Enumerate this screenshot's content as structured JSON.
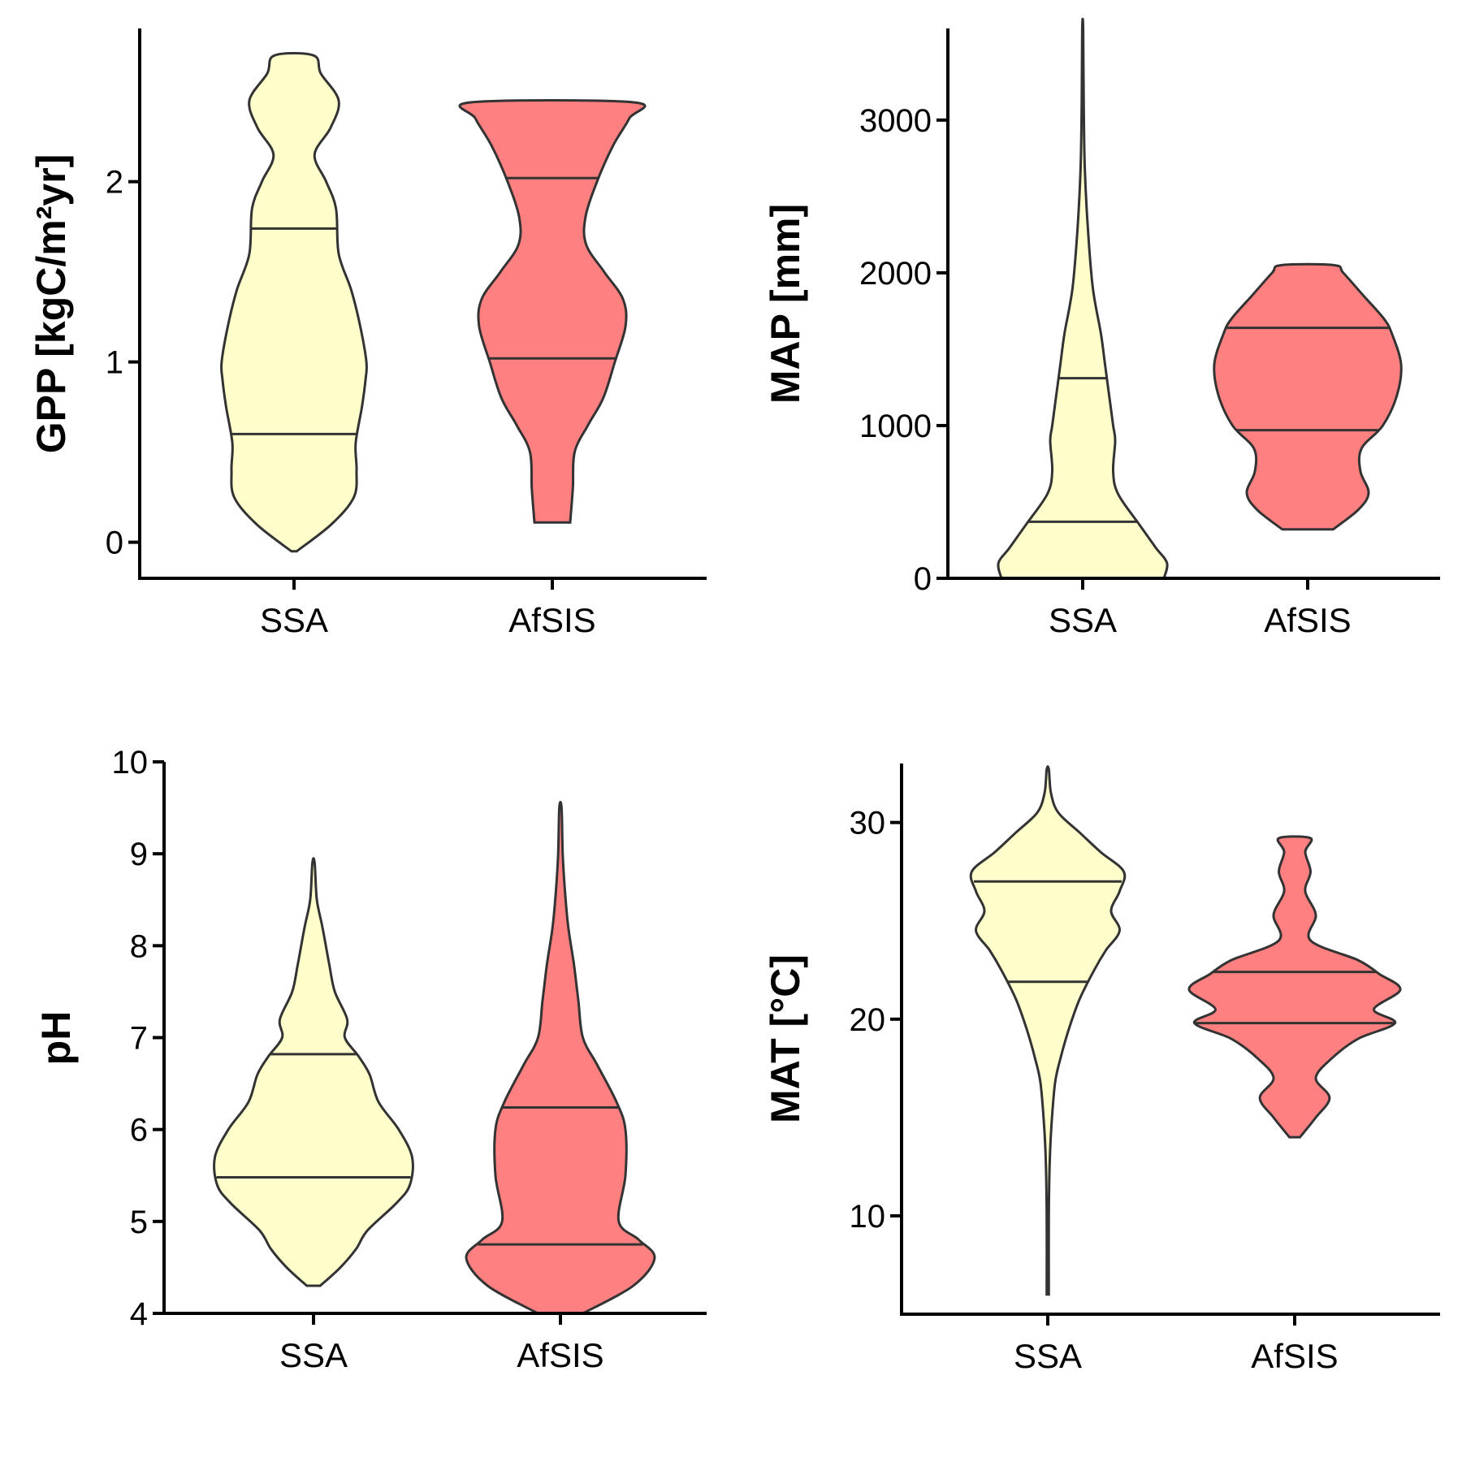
{
  "colors": {
    "SSA": "#FFFFCC",
    "AfSIS": "#FF8080",
    "outline": "#333333"
  },
  "chart_data": [
    {
      "type": "violin",
      "ylabel": "GPP [kgC/m²yr]",
      "categories": [
        "SSA",
        "AfSIS"
      ],
      "ylim": [
        -0.2,
        2.85
      ],
      "yticks": [
        0,
        1,
        2
      ],
      "series": [
        {
          "name": "SSA",
          "quantiles": [
            0.6,
            1.74
          ],
          "density": [
            [
              -0.05,
              0.03
            ],
            [
              0.1,
              0.42
            ],
            [
              0.25,
              0.67
            ],
            [
              0.4,
              0.7
            ],
            [
              0.55,
              0.69
            ],
            [
              0.75,
              0.76
            ],
            [
              0.9,
              0.8
            ],
            [
              1.0,
              0.81
            ],
            [
              1.2,
              0.74
            ],
            [
              1.4,
              0.64
            ],
            [
              1.6,
              0.5
            ],
            [
              1.85,
              0.47
            ],
            [
              2.0,
              0.36
            ],
            [
              2.15,
              0.23
            ],
            [
              2.3,
              0.41
            ],
            [
              2.45,
              0.5
            ],
            [
              2.6,
              0.3
            ],
            [
              2.7,
              0.22
            ]
          ]
        },
        {
          "name": "AfSIS",
          "quantiles": [
            1.02,
            2.02
          ],
          "density": [
            [
              0.11,
              0.2
            ],
            [
              0.3,
              0.23
            ],
            [
              0.5,
              0.25
            ],
            [
              0.65,
              0.4
            ],
            [
              0.8,
              0.57
            ],
            [
              1.0,
              0.7
            ],
            [
              1.2,
              0.82
            ],
            [
              1.35,
              0.79
            ],
            [
              1.5,
              0.58
            ],
            [
              1.65,
              0.38
            ],
            [
              1.8,
              0.37
            ],
            [
              2.0,
              0.5
            ],
            [
              2.2,
              0.68
            ],
            [
              2.35,
              0.86
            ],
            [
              2.44,
              0.91
            ]
          ]
        }
      ]
    },
    {
      "type": "violin",
      "ylabel": "MAP [mm]",
      "categories": [
        "SSA",
        "AfSIS"
      ],
      "ylim": [
        0,
        3600
      ],
      "yticks": [
        0,
        1000,
        2000,
        3000
      ],
      "series": [
        {
          "name": "SSA",
          "quantiles": [
            370,
            1310
          ],
          "density": [
            [
              0,
              0.8
            ],
            [
              100,
              0.83
            ],
            [
              200,
              0.72
            ],
            [
              350,
              0.56
            ],
            [
              550,
              0.35
            ],
            [
              700,
              0.3
            ],
            [
              900,
              0.32
            ],
            [
              1000,
              0.3
            ],
            [
              1200,
              0.26
            ],
            [
              1400,
              0.22
            ],
            [
              1600,
              0.18
            ],
            [
              1900,
              0.1
            ],
            [
              2300,
              0.05
            ],
            [
              2700,
              0.02
            ],
            [
              3100,
              0.01
            ],
            [
              3600,
              0.005
            ]
          ]
        },
        {
          "name": "AfSIS",
          "quantiles": [
            970,
            1640
          ],
          "density": [
            [
              320,
              0.25
            ],
            [
              450,
              0.5
            ],
            [
              560,
              0.6
            ],
            [
              700,
              0.52
            ],
            [
              850,
              0.53
            ],
            [
              1000,
              0.74
            ],
            [
              1200,
              0.88
            ],
            [
              1400,
              0.92
            ],
            [
              1600,
              0.83
            ],
            [
              1700,
              0.75
            ],
            [
              1850,
              0.55
            ],
            [
              2000,
              0.35
            ],
            [
              2050,
              0.26
            ]
          ]
        }
      ]
    },
    {
      "type": "violin",
      "ylabel": "pH",
      "categories": [
        "SSA",
        "AfSIS"
      ],
      "ylim": [
        4,
        10
      ],
      "yticks": [
        4,
        5,
        6,
        7,
        8,
        9,
        10
      ],
      "series": [
        {
          "name": "SSA",
          "quantiles": [
            5.48,
            6.82
          ],
          "density": [
            [
              4.3,
              0.06
            ],
            [
              4.5,
              0.24
            ],
            [
              4.7,
              0.38
            ],
            [
              4.9,
              0.48
            ],
            [
              5.2,
              0.74
            ],
            [
              5.4,
              0.86
            ],
            [
              5.7,
              0.88
            ],
            [
              6.0,
              0.76
            ],
            [
              6.3,
              0.58
            ],
            [
              6.6,
              0.5
            ],
            [
              6.8,
              0.4
            ],
            [
              7.0,
              0.28
            ],
            [
              7.2,
              0.3
            ],
            [
              7.5,
              0.19
            ],
            [
              7.8,
              0.14
            ],
            [
              8.2,
              0.08
            ],
            [
              8.5,
              0.03
            ],
            [
              8.9,
              0.01
            ]
          ]
        },
        {
          "name": "AfSIS",
          "quantiles": [
            4.75,
            6.24
          ],
          "density": [
            [
              4.0,
              0.2
            ],
            [
              4.3,
              0.65
            ],
            [
              4.6,
              0.84
            ],
            [
              4.8,
              0.7
            ],
            [
              5.0,
              0.52
            ],
            [
              5.5,
              0.58
            ],
            [
              6.0,
              0.58
            ],
            [
              6.3,
              0.5
            ],
            [
              6.7,
              0.33
            ],
            [
              7.0,
              0.2
            ],
            [
              7.4,
              0.16
            ],
            [
              7.8,
              0.12
            ],
            [
              8.2,
              0.07
            ],
            [
              8.6,
              0.04
            ],
            [
              9.0,
              0.02
            ],
            [
              9.5,
              0.01
            ]
          ]
        }
      ]
    },
    {
      "type": "violin",
      "ylabel": "MAT [°C]",
      "categories": [
        "SSA",
        "AfSIS"
      ],
      "ylim": [
        5,
        33
      ],
      "yticks": [
        10,
        20,
        30
      ],
      "series": [
        {
          "name": "SSA",
          "quantiles": [
            21.9,
            27.0
          ],
          "density": [
            [
              6,
              0.01
            ],
            [
              10,
              0.01
            ],
            [
              13,
              0.02
            ],
            [
              15,
              0.04
            ],
            [
              16.8,
              0.07
            ],
            [
              18,
              0.12
            ],
            [
              19.5,
              0.2
            ],
            [
              21,
              0.3
            ],
            [
              22.5,
              0.44
            ],
            [
              23.5,
              0.55
            ],
            [
              24.5,
              0.68
            ],
            [
              25.5,
              0.6
            ],
            [
              26.5,
              0.68
            ],
            [
              27.5,
              0.72
            ],
            [
              28.5,
              0.5
            ],
            [
              29.5,
              0.3
            ],
            [
              30.5,
              0.1
            ],
            [
              31.5,
              0.03
            ],
            [
              32.7,
              0.01
            ]
          ]
        },
        {
          "name": "AfSIS",
          "quantiles": [
            19.8,
            22.4
          ],
          "density": [
            [
              14,
              0.05
            ],
            [
              15,
              0.2
            ],
            [
              16,
              0.33
            ],
            [
              17,
              0.2
            ],
            [
              18,
              0.35
            ],
            [
              19,
              0.6
            ],
            [
              19.8,
              0.95
            ],
            [
              20.5,
              0.75
            ],
            [
              21.5,
              1.0
            ],
            [
              22.3,
              0.8
            ],
            [
              23,
              0.6
            ],
            [
              24,
              0.15
            ],
            [
              25.3,
              0.2
            ],
            [
              26.5,
              0.1
            ],
            [
              27.5,
              0.15
            ],
            [
              28.5,
              0.1
            ],
            [
              29.2,
              0.15
            ]
          ]
        }
      ]
    }
  ]
}
